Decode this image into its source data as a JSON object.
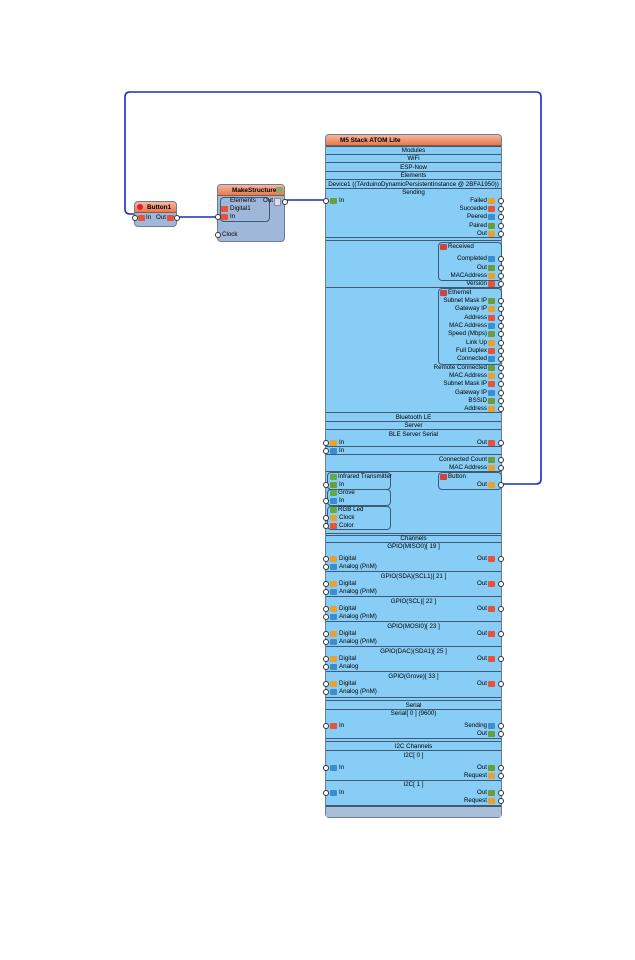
{
  "colors": {
    "wire": "#1a2bbf",
    "component_body": "#87cdf5",
    "title_bar": "#ee8a63",
    "small_body": "#9fb7d8"
  },
  "button1": {
    "title": "Button1",
    "in": "In",
    "out": "Out"
  },
  "make_structure": {
    "title": "MakeStructure1",
    "elements": "Elements",
    "digital": "Digital1",
    "in": "In",
    "out": "Out",
    "clock": "Clock"
  },
  "atom": {
    "title": "M5 Stack ATOM Lite",
    "rows": [
      "Modules",
      "WiFi",
      "ESP-Now",
      "Elements",
      "Device1 ((TArduinoDynamicPersistentInstance @ 2BFA1950))",
      "Sending",
      "In",
      "Failed",
      "Succeded",
      "Peered",
      "Paired",
      "Out",
      "Received",
      "Completed",
      "Out",
      "MACAddress",
      "Version",
      "Ethernet",
      "Subnet Mask IP",
      "Gateway IP",
      "Address",
      "MAC Address",
      "Speed (Mbps)",
      "Link Up",
      "Full Duplex",
      "Connected",
      "Remote Connected",
      "MAC Address",
      "Subnet Mask IP",
      "Gateway IP",
      "BSSID",
      "Address",
      "Bluetooth LE",
      "Server",
      "BLE Server Serial",
      "In",
      "Out",
      "In",
      "Connected Count",
      "MAC Address",
      "Infrared Transmitter",
      "Button",
      "In",
      "Out",
      "Grove",
      "In",
      "RGB Led",
      "Clock",
      "Color",
      "Channels",
      "GPIO(MISO0)[ 19 ]",
      "Digital",
      "Out",
      "Analog (PnM)",
      "GPIO(SDA)(SCL1)[ 21 ]",
      "Digital",
      "Out",
      "Analog (PnM)",
      "GPIO(SCL)[ 22 ]",
      "Digital",
      "Out",
      "Analog (PnM)",
      "GPIO(MOSI0)[ 23 ]",
      "Digital",
      "Out",
      "Analog (PnM)",
      "GPIO(DAC)(SDA1)[ 25 ]",
      "Digital",
      "Out",
      "Analog",
      "GPIO(Grove)[ 33 ]",
      "Digital",
      "Out",
      "Analog (PnM)",
      "Serial",
      "Serial[ 0 ] (9600)",
      "In",
      "Sending",
      "Out",
      "I2C Channels",
      "I2C[ 0 ]",
      "In",
      "Out",
      "Request",
      "I2C[ 1 ]",
      "In",
      "Out",
      "Request"
    ]
  }
}
